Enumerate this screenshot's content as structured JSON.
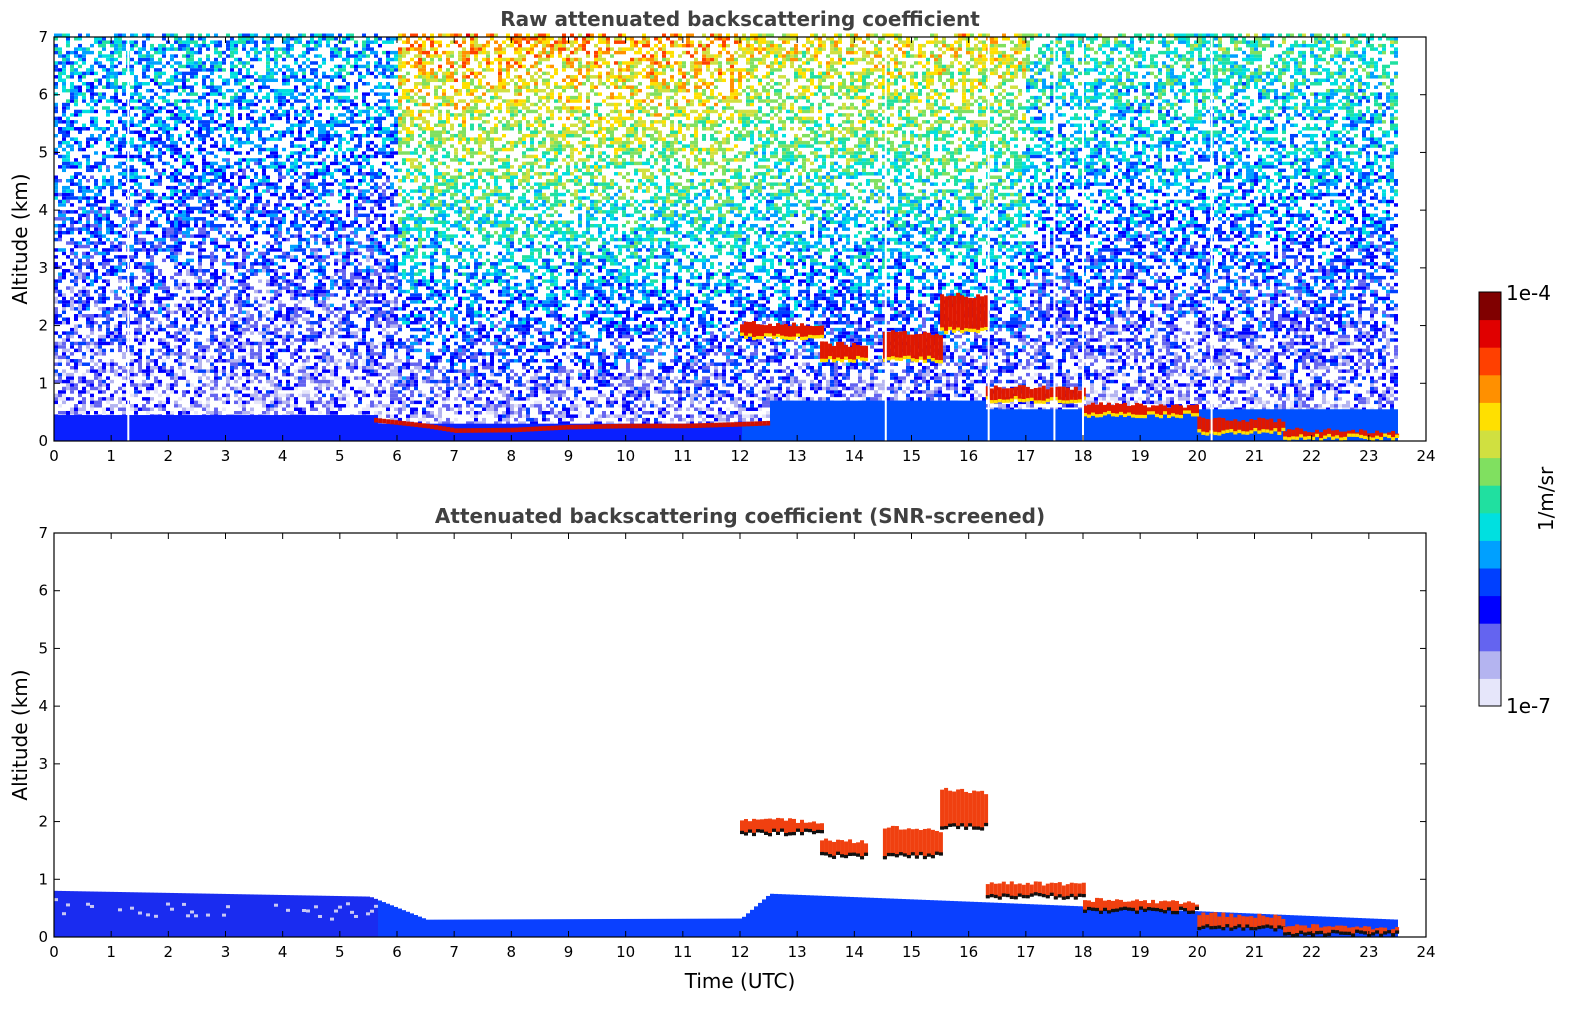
{
  "chart_data": [
    {
      "type": "heatmap",
      "title": "Raw attenuated backscattering coefficient",
      "xlabel": "",
      "ylabel": "Altitude (km)",
      "xlim": [
        0,
        24
      ],
      "ylim": [
        0,
        7
      ],
      "xticks": [
        "0",
        "1",
        "2",
        "3",
        "4",
        "5",
        "6",
        "7",
        "8",
        "9",
        "10",
        "11",
        "12",
        "13",
        "14",
        "15",
        "16",
        "17",
        "18",
        "19",
        "20",
        "21",
        "22",
        "23",
        "24"
      ],
      "yticks": [
        "0",
        "1",
        "2",
        "3",
        "4",
        "5",
        "6",
        "7"
      ],
      "data_end_time": 23.5,
      "background_noise": [
        {
          "from": 0,
          "to": 5.5,
          "level": 0.32
        },
        {
          "from": 6,
          "to": 12,
          "level": 0.7
        },
        {
          "from": 12,
          "to": 17,
          "level": 0.62
        },
        {
          "from": 17,
          "to": 23.5,
          "level": 0.42
        }
      ],
      "boundary_layer_top_km": [
        {
          "time": 5.6,
          "alt": 0.32
        },
        {
          "time": 6.5,
          "alt": 0.22
        },
        {
          "time": 7.0,
          "alt": 0.14
        },
        {
          "time": 8.0,
          "alt": 0.15
        },
        {
          "time": 9.0,
          "alt": 0.2
        },
        {
          "time": 10.0,
          "alt": 0.22
        },
        {
          "time": 11.0,
          "alt": 0.22
        },
        {
          "time": 12.0,
          "alt": 0.25
        },
        {
          "time": 12.5,
          "alt": 0.27
        }
      ],
      "cloud_layers_km": [
        {
          "from": 12.0,
          "to": 13.4,
          "base": 1.8,
          "top": 2.05
        },
        {
          "from": 13.4,
          "to": 14.2,
          "base": 1.4,
          "top": 1.7
        },
        {
          "from": 14.5,
          "to": 15.5,
          "base": 1.4,
          "top": 1.9
        },
        {
          "from": 15.5,
          "to": 16.3,
          "base": 1.9,
          "top": 2.55
        },
        {
          "from": 16.3,
          "to": 18.0,
          "base": 0.7,
          "top": 0.95
        },
        {
          "from": 18.0,
          "to": 20.0,
          "base": 0.45,
          "top": 0.65
        },
        {
          "from": 20.0,
          "to": 21.5,
          "base": 0.15,
          "top": 0.4
        },
        {
          "from": 21.5,
          "to": 23.5,
          "base": 0.05,
          "top": 0.2
        }
      ],
      "invalid_profile_times": [
        1.3,
        14.55,
        16.35,
        17.5,
        18.0,
        20.25
      ]
    },
    {
      "type": "heatmap",
      "title": "Attenuated backscattering coefficient (SNR-screened)",
      "xlabel": "Time (UTC)",
      "ylabel": "Altitude (km)",
      "xlim": [
        0,
        24
      ],
      "ylim": [
        0,
        7
      ],
      "xticks": [
        "0",
        "1",
        "2",
        "3",
        "4",
        "5",
        "6",
        "7",
        "8",
        "9",
        "10",
        "11",
        "12",
        "13",
        "14",
        "15",
        "16",
        "17",
        "18",
        "19",
        "20",
        "21",
        "22",
        "23",
        "24"
      ],
      "yticks": [
        "0",
        "1",
        "2",
        "3",
        "4",
        "5",
        "6",
        "7"
      ],
      "data_end_time": 23.5,
      "near_surface_layer_top_km": [
        {
          "time": 0,
          "alt": 0.8
        },
        {
          "time": 5.5,
          "alt": 0.7
        },
        {
          "time": 6.5,
          "alt": 0.3
        },
        {
          "time": 12.0,
          "alt": 0.32
        },
        {
          "time": 12.5,
          "alt": 0.75
        },
        {
          "time": 16.3,
          "alt": 0.6
        },
        {
          "time": 23.5,
          "alt": 0.3
        }
      ],
      "cloud_layers_km": [
        {
          "from": 12.0,
          "to": 13.4,
          "base": 1.8,
          "top": 2.05
        },
        {
          "from": 13.4,
          "to": 14.2,
          "base": 1.4,
          "top": 1.7
        },
        {
          "from": 14.5,
          "to": 15.5,
          "base": 1.4,
          "top": 1.9
        },
        {
          "from": 15.5,
          "to": 16.3,
          "base": 1.9,
          "top": 2.55
        },
        {
          "from": 16.3,
          "to": 18.0,
          "base": 0.7,
          "top": 0.95
        },
        {
          "from": 18.0,
          "to": 20.0,
          "base": 0.45,
          "top": 0.65
        },
        {
          "from": 20.0,
          "to": 21.5,
          "base": 0.15,
          "top": 0.4
        },
        {
          "from": 21.5,
          "to": 23.5,
          "base": 0.05,
          "top": 0.2
        }
      ]
    }
  ],
  "colorbar": {
    "label": "1/m/sr",
    "max_label": "1e-4",
    "min_label": "1e-7",
    "scale": "log",
    "colormap": [
      "#e6e6fa",
      "#b4b4f0",
      "#6464f0",
      "#0000ff",
      "#0040ff",
      "#00a0ff",
      "#00e0e0",
      "#20e0a0",
      "#80e060",
      "#d0e040",
      "#ffe000",
      "#ff9000",
      "#ff4000",
      "#e00000",
      "#800000"
    ]
  }
}
